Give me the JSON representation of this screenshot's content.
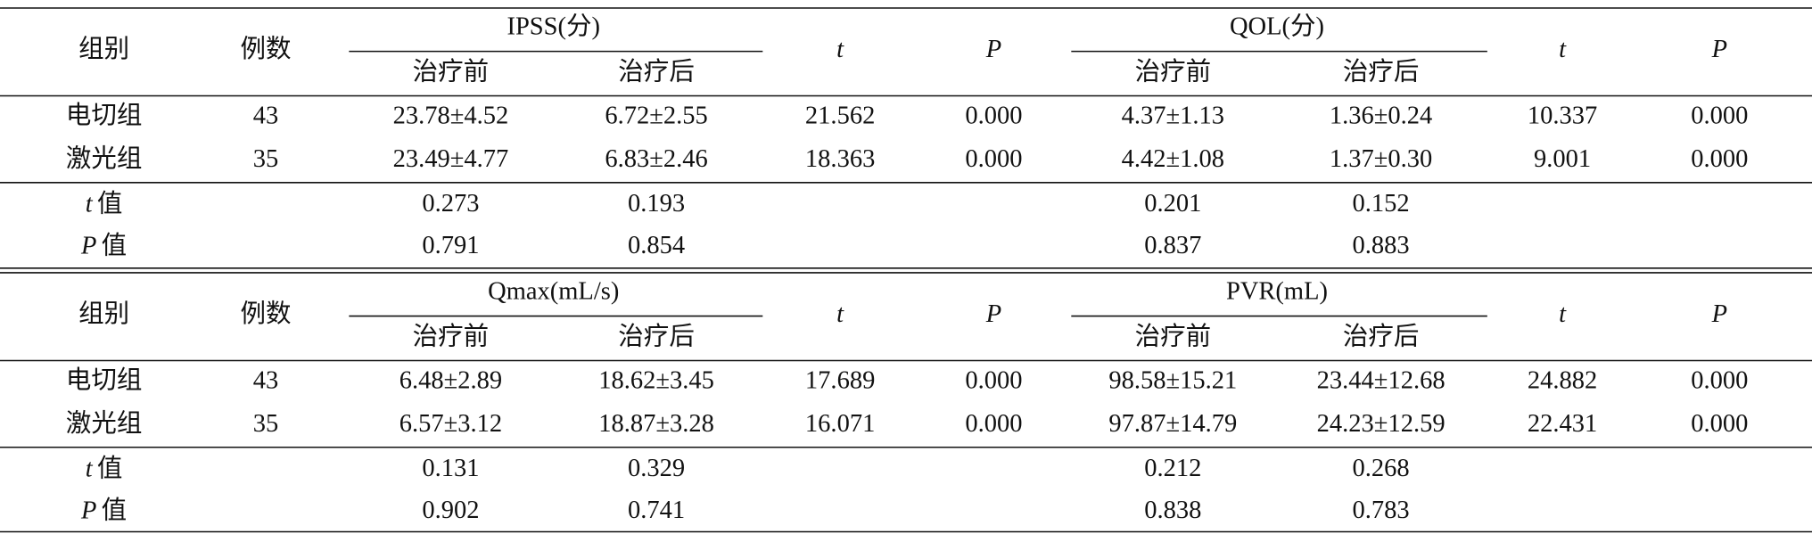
{
  "sections": [
    {
      "header": {
        "cols": [
          "组别",
          "例数"
        ],
        "groups": [
          {
            "title": "IPSS(分)",
            "sub": [
              "治疗前",
              "治疗后"
            ],
            "stats": [
              "t",
              "P"
            ]
          },
          {
            "title": "QOL(分)",
            "sub": [
              "治疗前",
              "治疗后"
            ],
            "stats": [
              "t",
              "P"
            ]
          }
        ]
      },
      "rows": [
        [
          "电切组",
          "43",
          "23.78±4.52",
          "6.72±2.55",
          "21.562",
          "0.000",
          "4.37±1.13",
          "1.36±0.24",
          "10.337",
          "0.000"
        ],
        [
          "激光组",
          "35",
          "23.49±4.77",
          "6.83±2.46",
          "18.363",
          "0.000",
          "4.42±1.08",
          "1.37±0.30",
          "9.001",
          "0.000"
        ]
      ],
      "stat_rows": [
        {
          "symbol": "t",
          "word": "值",
          "values": [
            "0.273",
            "0.193",
            "0.201",
            "0.152"
          ]
        },
        {
          "symbol": "P",
          "word": "值",
          "values": [
            "0.791",
            "0.854",
            "0.837",
            "0.883"
          ]
        }
      ]
    },
    {
      "header": {
        "cols": [
          "组别",
          "例数"
        ],
        "groups": [
          {
            "title": "Qmax(mL/s)",
            "sub": [
              "治疗前",
              "治疗后"
            ],
            "stats": [
              "t",
              "P"
            ]
          },
          {
            "title": "PVR(mL)",
            "sub": [
              "治疗前",
              "治疗后"
            ],
            "stats": [
              "t",
              "P"
            ]
          }
        ]
      },
      "rows": [
        [
          "电切组",
          "43",
          "6.48±2.89",
          "18.62±3.45",
          "17.689",
          "0.000",
          "98.58±15.21",
          "23.44±12.68",
          "24.882",
          "0.000"
        ],
        [
          "激光组",
          "35",
          "6.57±3.12",
          "18.87±3.28",
          "16.071",
          "0.000",
          "97.87±14.79",
          "24.23±12.59",
          "22.431",
          "0.000"
        ]
      ],
      "stat_rows": [
        {
          "symbol": "t",
          "word": "值",
          "values": [
            "0.131",
            "0.329",
            "0.212",
            "0.268"
          ]
        },
        {
          "symbol": "P",
          "word": "值",
          "values": [
            "0.902",
            "0.741",
            "0.838",
            "0.783"
          ]
        }
      ]
    }
  ]
}
